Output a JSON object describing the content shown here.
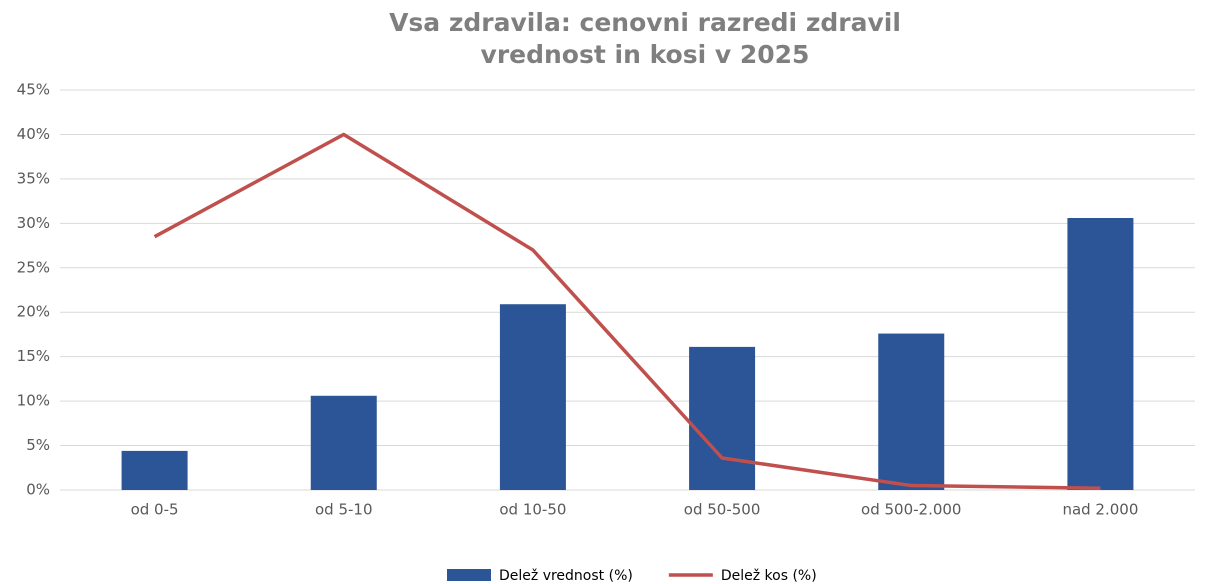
{
  "chart_data": {
    "type": "bar",
    "title": [
      "Vsa zdravila: cenovni razredi zdravil",
      "vrednost in kosi v 2025"
    ],
    "categories": [
      "od 0-5",
      "od 5-10",
      "od 10-50",
      "od 50-500",
      "od 500-2.000",
      "nad 2.000"
    ],
    "series": [
      {
        "name": "Delež vrednost (%)",
        "type": "bar",
        "color": "#2b5597",
        "values": [
          4.4,
          10.6,
          20.9,
          16.1,
          17.6,
          30.6
        ]
      },
      {
        "name": "Delež kos (%)",
        "type": "line",
        "color": "#c0504d",
        "values": [
          28.5,
          40.0,
          27.0,
          3.6,
          0.5,
          0.2
        ]
      }
    ],
    "ylim": [
      0,
      45
    ],
    "yticks": [
      {
        "value": 0,
        "label": "0%"
      },
      {
        "value": 5,
        "label": "5%"
      },
      {
        "value": 10,
        "label": "10%"
      },
      {
        "value": 15,
        "label": "15%"
      },
      {
        "value": 20,
        "label": "20%"
      },
      {
        "value": 25,
        "label": "25%"
      },
      {
        "value": 30,
        "label": "30%"
      },
      {
        "value": 35,
        "label": "35%"
      },
      {
        "value": 40,
        "label": "40%"
      },
      {
        "value": 45,
        "label": "45%"
      }
    ],
    "grid": true,
    "legend": "bottom"
  }
}
